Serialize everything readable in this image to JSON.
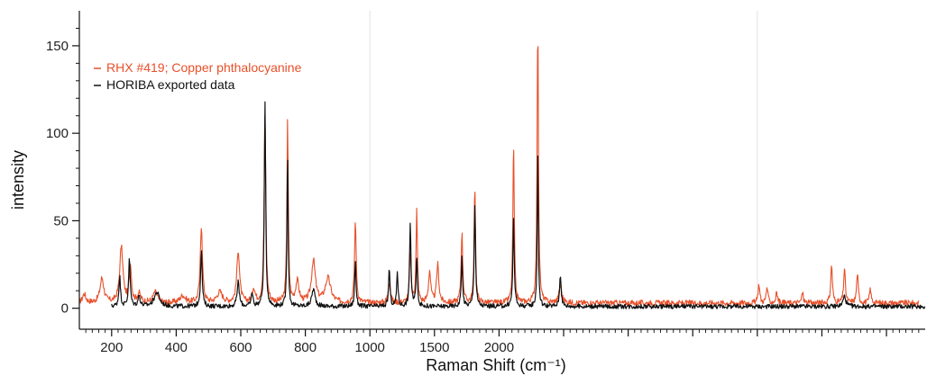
{
  "chart_data": {
    "type": "line",
    "xlabel": "Raman Shift (cm⁻¹)",
    "ylabel": "intensity",
    "xlim": [
      100,
      2720
    ],
    "ylim": [
      -12,
      170
    ],
    "x_ticks": [
      200,
      400,
      600,
      800,
      1000,
      1200,
      1400,
      1600,
      1800,
      2000,
      2200,
      2400,
      2600
    ],
    "x_tick_labels": [
      "200",
      "400",
      "600",
      "800",
      "1000",
      "1500",
      "2000"
    ],
    "x_tick_label_positions": [
      200,
      400,
      600,
      800,
      1000,
      1500,
      2000
    ],
    "y_ticks": [
      0,
      50,
      100,
      150
    ],
    "y_tick_labels": [
      "0",
      "50",
      "100",
      "150"
    ],
    "grid_lines_x": [
      1000,
      2200
    ],
    "legend_placement": "top-left",
    "series": [
      {
        "name": "RHX #419; Copper phthalocyanine",
        "color": "#e8502a",
        "baseline": 3,
        "range": [
          100,
          2700
        ],
        "peaks": [
          [
            115,
            5,
            6
          ],
          [
            170,
            14,
            7
          ],
          [
            230,
            32,
            6
          ],
          [
            258,
            22,
            4
          ],
          [
            285,
            5,
            6
          ],
          [
            335,
            6,
            8
          ],
          [
            420,
            4,
            10
          ],
          [
            478,
            44,
            4
          ],
          [
            535,
            6,
            10
          ],
          [
            592,
            30,
            5
          ],
          [
            640,
            8,
            5
          ],
          [
            675,
            110,
            3
          ],
          [
            745,
            105,
            2.5
          ],
          [
            775,
            12,
            6
          ],
          [
            825,
            24,
            7
          ],
          [
            870,
            14,
            10
          ],
          [
            955,
            47,
            3
          ],
          [
            1060,
            12,
            4
          ],
          [
            1125,
            28,
            3
          ],
          [
            1145,
            53,
            2.5
          ],
          [
            1185,
            18,
            4
          ],
          [
            1210,
            22,
            4
          ],
          [
            1285,
            40,
            3
          ],
          [
            1325,
            68,
            2.5
          ],
          [
            1445,
            92,
            2.5
          ],
          [
            1520,
            160,
            2.5
          ],
          [
            1590,
            10,
            5
          ],
          [
            2205,
            11,
            3
          ],
          [
            2230,
            9,
            3
          ],
          [
            2260,
            6,
            3
          ],
          [
            2340,
            6,
            3
          ],
          [
            2430,
            22,
            3
          ],
          [
            2470,
            20,
            3
          ],
          [
            2510,
            17,
            3
          ],
          [
            2550,
            8,
            3
          ]
        ]
      },
      {
        "name": "HORIBA exported data",
        "color": "#111111",
        "baseline": 1,
        "range": [
          200,
          2720
        ],
        "peaks": [
          [
            225,
            17,
            3
          ],
          [
            255,
            27,
            3
          ],
          [
            285,
            6,
            4
          ],
          [
            340,
            8,
            10
          ],
          [
            478,
            32,
            3
          ],
          [
            592,
            14,
            4
          ],
          [
            635,
            8,
            3
          ],
          [
            675,
            118,
            2.5
          ],
          [
            745,
            92,
            2
          ],
          [
            825,
            10,
            6
          ],
          [
            955,
            26,
            2.5
          ],
          [
            1060,
            22,
            2.5
          ],
          [
            1085,
            20,
            2.5
          ],
          [
            1125,
            48,
            2.5
          ],
          [
            1145,
            28,
            2.5
          ],
          [
            1285,
            28,
            2.5
          ],
          [
            1325,
            58,
            2.5
          ],
          [
            1445,
            50,
            2.5
          ],
          [
            1520,
            86,
            2
          ],
          [
            1590,
            18,
            3
          ],
          [
            2470,
            6,
            5
          ]
        ]
      }
    ]
  }
}
